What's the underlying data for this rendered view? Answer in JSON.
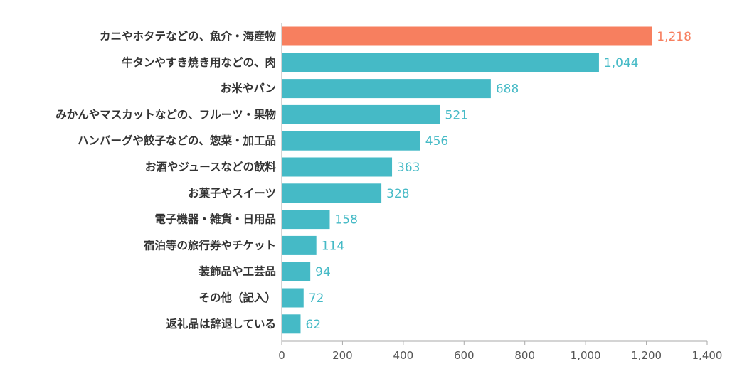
{
  "chart_data": {
    "type": "bar",
    "orientation": "horizontal",
    "categories": [
      "カニやホタテなどの、魚介・海産物",
      "牛タンやすき焼き用などの、肉",
      "お米やパン",
      "みかんやマスカットなどの、フルーツ・果物",
      "ハンバーグや餃子などの、惣菜・加工品",
      "お酒やジュースなどの飲料",
      "お菓子やスイーツ",
      "電子機器・雑貨・日用品",
      "宿泊等の旅行券やチケット",
      "装飾品や工芸品",
      "その他（記入）",
      "返礼品は辞退している"
    ],
    "values": [
      1218,
      1044,
      688,
      521,
      456,
      363,
      328,
      158,
      114,
      94,
      72,
      62
    ],
    "value_labels": [
      "1,218",
      "1,044",
      "688",
      "521",
      "456",
      "363",
      "328",
      "158",
      "114",
      "94",
      "72",
      "62"
    ],
    "highlight_index": 0,
    "colors": {
      "bar": "#45bac6",
      "highlight": "#f77f5f",
      "axis": "#aaaaaa",
      "tick_text": "#555555",
      "category_text": "#333333"
    },
    "xlim": [
      0,
      1400
    ],
    "xticks": [
      0,
      200,
      400,
      600,
      800,
      1000,
      1200,
      1400
    ],
    "xtick_labels": [
      "0",
      "200",
      "400",
      "600",
      "800",
      "1,000",
      "1,200",
      "1,400"
    ],
    "title": "",
    "xlabel": "",
    "ylabel": "",
    "grid": false,
    "legend": "none"
  }
}
